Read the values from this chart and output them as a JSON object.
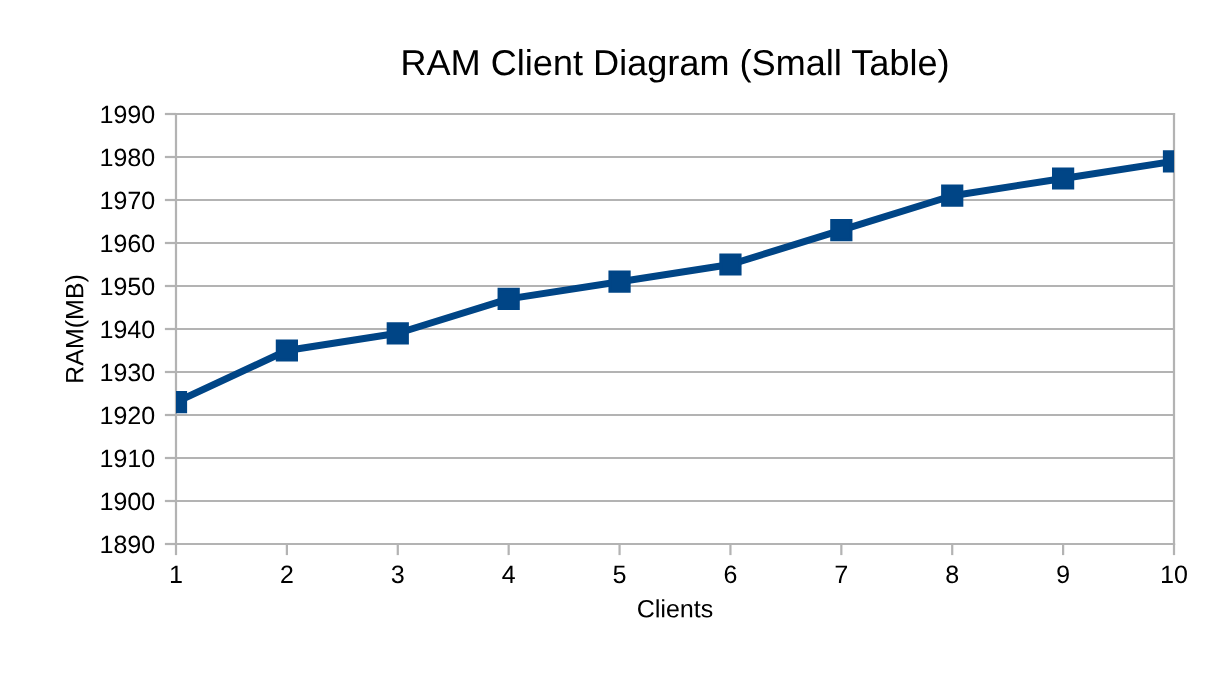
{
  "chart_data": {
    "type": "line",
    "title": "RAM Client Diagram (Small Table)",
    "xlabel": "Clients",
    "ylabel": "RAM(MB)",
    "x": [
      1,
      2,
      3,
      4,
      5,
      6,
      7,
      8,
      9,
      10
    ],
    "series": [
      {
        "color": "#004586",
        "values": [
          1923,
          1935,
          1939,
          1947,
          1951,
          1955,
          1963,
          1971,
          1975,
          1979
        ]
      }
    ],
    "xlim": [
      1,
      10
    ],
    "xticks": [
      1,
      2,
      3,
      4,
      5,
      6,
      7,
      8,
      9,
      10
    ],
    "ylim": [
      1890,
      1990
    ],
    "yticks": [
      1890,
      1900,
      1910,
      1920,
      1930,
      1940,
      1950,
      1960,
      1970,
      1980,
      1990
    ],
    "grid": "y",
    "marker": "square",
    "line_style": "solid",
    "legend": false
  }
}
